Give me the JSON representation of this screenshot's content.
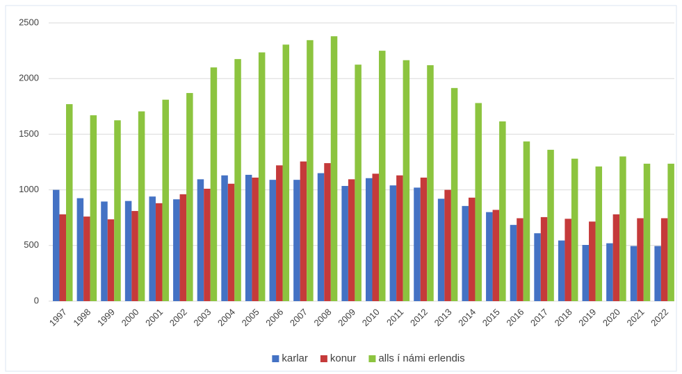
{
  "chart_data": {
    "type": "bar",
    "categories": [
      "1997",
      "1998",
      "1999",
      "2000",
      "2001",
      "2002",
      "2003",
      "2004",
      "2005",
      "2006",
      "2007",
      "2008",
      "2009",
      "2010",
      "2011",
      "2012",
      "2013",
      "2014",
      "2015",
      "2016",
      "2017",
      "2018",
      "2019",
      "2020",
      "2021",
      "2022"
    ],
    "series": [
      {
        "name": "karlar",
        "color": "#4472c4",
        "values": [
          1000,
          925,
          895,
          900,
          940,
          915,
          1095,
          1130,
          1135,
          1090,
          1090,
          1150,
          1035,
          1105,
          1040,
          1020,
          920,
          855,
          800,
          685,
          610,
          545,
          505,
          520,
          495,
          495
        ]
      },
      {
        "name": "konur",
        "color": "#c53a3a",
        "values": [
          780,
          760,
          735,
          810,
          880,
          960,
          1010,
          1055,
          1110,
          1220,
          1255,
          1240,
          1095,
          1145,
          1130,
          1110,
          1000,
          930,
          820,
          745,
          755,
          740,
          715,
          780,
          745,
          745
        ]
      },
      {
        "name": "alls í námi erlendis",
        "color": "#8cc43f",
        "values": [
          1770,
          1670,
          1625,
          1705,
          1810,
          1870,
          2100,
          2175,
          2235,
          2305,
          2345,
          2380,
          2125,
          2250,
          2165,
          2120,
          1915,
          1780,
          1615,
          1435,
          1360,
          1280,
          1210,
          1300,
          1235,
          1235
        ]
      }
    ],
    "ylim": [
      0,
      2500
    ],
    "yticks": [
      0,
      500,
      1000,
      1500,
      2000,
      2500
    ],
    "grid": true,
    "legend": "bottom"
  }
}
